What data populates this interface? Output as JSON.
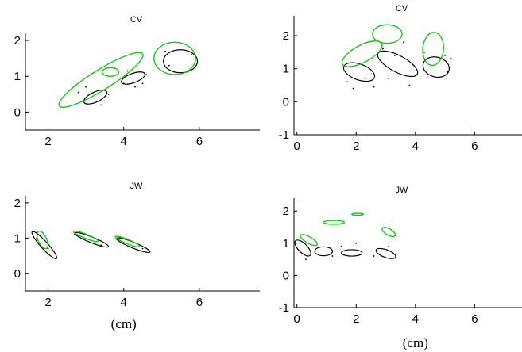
{
  "colors": {
    "black": "#000000",
    "green": "#19c319"
  },
  "chart_data": [
    {
      "type": "scatter",
      "title": "CV",
      "xunit": "",
      "xlim": [
        1.4,
        7.6
      ],
      "ylim": [
        -0.5,
        2.2
      ],
      "xticks": [
        2,
        4,
        6
      ],
      "yticks": [
        0,
        1,
        2
      ],
      "ellipses": {
        "black": [
          {
            "cx": 3.25,
            "cy": 0.42,
            "rx": 0.33,
            "ry": 0.14,
            "angle": 25
          },
          {
            "cx": 4.25,
            "cy": 0.95,
            "rx": 0.33,
            "ry": 0.13,
            "angle": 20
          },
          {
            "cx": 5.5,
            "cy": 1.42,
            "rx": 0.45,
            "ry": 0.32,
            "angle": 0
          }
        ],
        "green": [
          {
            "cx": 3.4,
            "cy": 0.9,
            "rx": 1.3,
            "ry": 0.28,
            "angle": 32
          },
          {
            "cx": 3.65,
            "cy": 1.12,
            "rx": 0.22,
            "ry": 0.12,
            "angle": 0
          },
          {
            "cx": 5.35,
            "cy": 1.5,
            "rx": 0.55,
            "ry": 0.45,
            "angle": 0
          }
        ]
      },
      "dots": [
        [
          2.8,
          0.55
        ],
        [
          3.3,
          0.3
        ],
        [
          3.4,
          0.2
        ],
        [
          3.6,
          0.5
        ],
        [
          4.0,
          0.8
        ],
        [
          4.6,
          1.05
        ],
        [
          4.5,
          0.8
        ],
        [
          4.1,
          1.15
        ],
        [
          5.1,
          1.7
        ],
        [
          5.7,
          1.15
        ],
        [
          5.2,
          1.3
        ],
        [
          5.8,
          1.6
        ],
        [
          3.0,
          0.7
        ],
        [
          4.3,
          0.7
        ]
      ]
    },
    {
      "type": "scatter",
      "title": "CV",
      "xunit": "",
      "xlim": [
        -0.1,
        7.6
      ],
      "ylim": [
        -1,
        2.6
      ],
      "xticks": [
        0,
        2,
        4,
        6
      ],
      "yticks": [
        -1,
        0,
        1,
        2
      ],
      "ellipses": {
        "black": [
          {
            "cx": 2.1,
            "cy": 0.9,
            "rx": 0.55,
            "ry": 0.24,
            "angle": -20
          },
          {
            "cx": 3.4,
            "cy": 1.15,
            "rx": 0.75,
            "ry": 0.25,
            "angle": -28
          },
          {
            "cx": 4.7,
            "cy": 1.05,
            "rx": 0.45,
            "ry": 0.3,
            "angle": -15
          }
        ],
        "green": [
          {
            "cx": 2.2,
            "cy": 1.45,
            "rx": 0.75,
            "ry": 0.26,
            "angle": 28
          },
          {
            "cx": 3.05,
            "cy": 2.05,
            "rx": 0.5,
            "ry": 0.28,
            "angle": 0
          },
          {
            "cx": 4.6,
            "cy": 1.6,
            "rx": 0.35,
            "ry": 0.5,
            "angle": -5
          }
        ]
      },
      "dots": [
        [
          1.9,
          0.4
        ],
        [
          2.3,
          0.7
        ],
        [
          2.6,
          0.45
        ],
        [
          3.1,
          0.7
        ],
        [
          3.8,
          0.5
        ],
        [
          4.0,
          0.8
        ],
        [
          2.9,
          1.6
        ],
        [
          3.6,
          1.8
        ],
        [
          5.1,
          0.9
        ],
        [
          5.0,
          1.4
        ],
        [
          4.3,
          1.5
        ],
        [
          5.2,
          1.3
        ],
        [
          1.7,
          0.6
        ],
        [
          3.3,
          1.4
        ]
      ]
    },
    {
      "type": "scatter",
      "title": "JW",
      "xunit": "(cm)",
      "xlim": [
        1.4,
        7.6
      ],
      "ylim": [
        -0.5,
        2.2
      ],
      "xticks": [
        2,
        4,
        6
      ],
      "yticks": [
        0,
        1,
        2
      ],
      "ellipses": {
        "black": [
          {
            "cx": 1.9,
            "cy": 0.8,
            "rx": 0.48,
            "ry": 0.1,
            "angle": -48
          },
          {
            "cx": 3.15,
            "cy": 0.95,
            "rx": 0.48,
            "ry": 0.08,
            "angle": -22
          },
          {
            "cx": 4.25,
            "cy": 0.8,
            "rx": 0.48,
            "ry": 0.08,
            "angle": -22
          }
        ],
        "green": [
          {
            "cx": 1.85,
            "cy": 0.95,
            "rx": 0.25,
            "ry": 0.12,
            "angle": -65
          },
          {
            "cx": 3.0,
            "cy": 1.05,
            "rx": 0.35,
            "ry": 0.06,
            "angle": -22
          },
          {
            "cx": 4.1,
            "cy": 0.9,
            "rx": 0.35,
            "ry": 0.06,
            "angle": -22
          }
        ]
      },
      "dots": [
        [
          1.7,
          1.0
        ],
        [
          2.0,
          0.7
        ],
        [
          2.7,
          1.1
        ],
        [
          3.4,
          0.8
        ],
        [
          3.9,
          1.0
        ],
        [
          4.5,
          0.7
        ]
      ]
    },
    {
      "type": "scatter",
      "title": "JW",
      "xunit": "(cm)",
      "xlim": [
        -0.1,
        7.6
      ],
      "ylim": [
        -1,
        2.4
      ],
      "xticks": [
        0,
        2,
        4,
        6
      ],
      "yticks": [
        -1,
        0,
        1,
        2
      ],
      "ellipses": {
        "black": [
          {
            "cx": 0.2,
            "cy": 0.85,
            "rx": 0.35,
            "ry": 0.14,
            "angle": -45
          },
          {
            "cx": 0.9,
            "cy": 0.75,
            "rx": 0.3,
            "ry": 0.14,
            "angle": 0
          },
          {
            "cx": 1.85,
            "cy": 0.7,
            "rx": 0.35,
            "ry": 0.1,
            "angle": 0
          },
          {
            "cx": 3.0,
            "cy": 0.68,
            "rx": 0.35,
            "ry": 0.12,
            "angle": -20
          }
        ],
        "green": [
          {
            "cx": 0.4,
            "cy": 1.1,
            "rx": 0.32,
            "ry": 0.1,
            "angle": -30
          },
          {
            "cx": 1.25,
            "cy": 1.65,
            "rx": 0.35,
            "ry": 0.06,
            "angle": 0
          },
          {
            "cx": 2.05,
            "cy": 1.9,
            "rx": 0.2,
            "ry": 0.03,
            "angle": 0
          },
          {
            "cx": 3.1,
            "cy": 1.35,
            "rx": 0.25,
            "ry": 0.1,
            "angle": -30
          }
        ]
      },
      "dots": [
        [
          0.3,
          0.5
        ],
        [
          1.5,
          0.9
        ],
        [
          2.0,
          1.0
        ],
        [
          3.1,
          0.9
        ],
        [
          2.6,
          0.6
        ],
        [
          1.2,
          0.6
        ]
      ]
    }
  ]
}
